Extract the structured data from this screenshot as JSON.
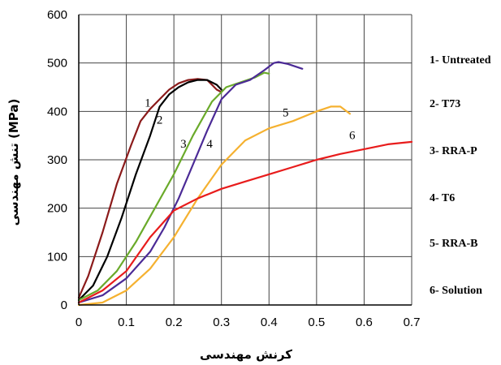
{
  "chart_data": {
    "type": "line",
    "title": "",
    "xlabel": "کرنش مهندسی",
    "ylabel": "تنش مهندسی (MPa)",
    "xlim": [
      0,
      0.7
    ],
    "ylim": [
      0,
      600
    ],
    "xticks": [
      "0",
      "0.1",
      "0.2",
      "0.3",
      "0.4",
      "0.5",
      "0.6",
      "0.7"
    ],
    "yticks": [
      "0",
      "100",
      "200",
      "300",
      "400",
      "500",
      "600"
    ],
    "xtick_values": [
      0,
      0.1,
      0.2,
      0.3,
      0.4,
      0.5,
      0.6,
      0.7
    ],
    "ytick_values": [
      0,
      100,
      200,
      300,
      400,
      500,
      600
    ],
    "grid": true,
    "legend_position": "right",
    "legend": [
      "1- Untreated",
      "2- T73",
      "3- RRA-P",
      "4- T6",
      "5- RRA-B",
      "6- Solution"
    ],
    "series": [
      {
        "label": "1",
        "color": "#8b1a1a",
        "x": [
          0,
          0.02,
          0.05,
          0.08,
          0.11,
          0.13,
          0.15,
          0.17,
          0.19,
          0.21,
          0.23,
          0.25,
          0.27,
          0.28,
          0.29,
          0.3
        ],
        "y": [
          15,
          60,
          150,
          250,
          330,
          380,
          405,
          425,
          445,
          458,
          465,
          467,
          465,
          455,
          445,
          440
        ],
        "marker_at": [
          0.145,
          410
        ]
      },
      {
        "label": "2",
        "color": "#000000",
        "x": [
          0,
          0.03,
          0.06,
          0.09,
          0.12,
          0.15,
          0.17,
          0.19,
          0.21,
          0.23,
          0.25,
          0.27,
          0.29,
          0.3
        ],
        "y": [
          10,
          40,
          100,
          180,
          270,
          350,
          410,
          435,
          450,
          460,
          465,
          465,
          455,
          445
        ],
        "marker_at": [
          0.17,
          375
        ]
      },
      {
        "label": "3",
        "color": "#6aaa2a",
        "x": [
          0,
          0.04,
          0.08,
          0.12,
          0.16,
          0.2,
          0.24,
          0.28,
          0.31,
          0.34,
          0.37,
          0.39,
          0.4
        ],
        "y": [
          10,
          30,
          70,
          130,
          200,
          270,
          350,
          420,
          450,
          460,
          470,
          480,
          478
        ],
        "marker_at": [
          0.22,
          325
        ]
      },
      {
        "label": "4",
        "color": "#4b2a96",
        "x": [
          0,
          0.05,
          0.1,
          0.15,
          0.18,
          0.21,
          0.24,
          0.27,
          0.3,
          0.33,
          0.36,
          0.39,
          0.41,
          0.42,
          0.44,
          0.47
        ],
        "y": [
          5,
          20,
          55,
          110,
          160,
          220,
          290,
          360,
          425,
          455,
          465,
          485,
          500,
          502,
          498,
          488
        ],
        "marker_at": [
          0.275,
          325
        ]
      },
      {
        "label": "5",
        "color": "#f5b130",
        "x": [
          0,
          0.05,
          0.1,
          0.15,
          0.2,
          0.25,
          0.3,
          0.35,
          0.4,
          0.45,
          0.5,
          0.53,
          0.55,
          0.57
        ],
        "y": [
          0,
          5,
          30,
          75,
          140,
          220,
          290,
          340,
          365,
          380,
          400,
          410,
          410,
          395
        ],
        "marker_at": [
          0.435,
          390
        ]
      },
      {
        "label": "6",
        "color": "#e81c1c",
        "x": [
          0,
          0.05,
          0.1,
          0.15,
          0.2,
          0.25,
          0.3,
          0.35,
          0.4,
          0.45,
          0.5,
          0.55,
          0.6,
          0.65,
          0.7
        ],
        "y": [
          5,
          30,
          70,
          140,
          195,
          220,
          240,
          255,
          270,
          285,
          300,
          312,
          322,
          332,
          337
        ],
        "marker_at": [
          0.575,
          343
        ]
      }
    ]
  }
}
